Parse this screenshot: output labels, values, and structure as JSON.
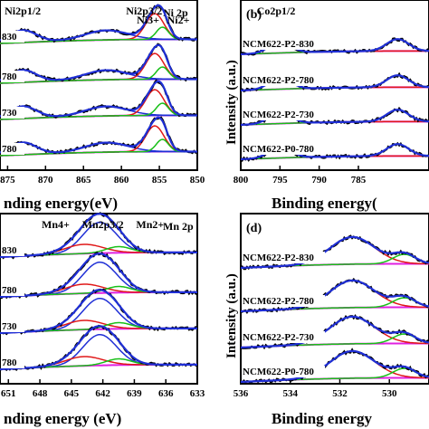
{
  "colors": {
    "raw": "#000000",
    "fit": "#1f2fd6",
    "background": "#e020e0",
    "peak_red": "#e01818",
    "peak_green": "#18c018"
  },
  "chart_data": [
    {
      "panel": "a",
      "type": "line",
      "element_label": "Ni 2p",
      "xlabel": "nding energy(eV)",
      "xlim": [
        876,
        850
      ],
      "x_ticks": [
        875,
        870,
        865,
        860,
        855,
        850
      ],
      "annotations": [
        {
          "text": "Ni2p1/2",
          "x": 873
        },
        {
          "text": "Ni2p3/2",
          "x": 857
        },
        {
          "text": "Ni3+",
          "x": 856.5,
          "color": "peak_red"
        },
        {
          "text": "Ni2+",
          "x": 852.5,
          "color": "peak_green"
        }
      ],
      "series_labels": [
        "830",
        "780",
        "730",
        "780"
      ],
      "peaks": [
        {
          "center": 873,
          "sigma": 1.8,
          "amp": 0.45
        },
        {
          "center": 862,
          "sigma": 2.8,
          "amp": 0.35
        },
        {
          "center": 855.6,
          "sigma": 1.2,
          "amp": 0.95
        },
        {
          "center": 854.6,
          "sigma": 0.8,
          "amp": 0.45
        }
      ]
    },
    {
      "panel": "b",
      "type": "line",
      "letter": "(b)",
      "xlabel": "Binding energy(",
      "ylabel": "Intensity (a.u.)",
      "xlim": [
        800,
        776
      ],
      "x_ticks": [
        800,
        795,
        790,
        785
      ],
      "annotations": [
        {
          "text": "Co2p1/2",
          "x": 795.5
        }
      ],
      "series_labels": [
        "NCM622-P2-830",
        "NCM622-P2-780",
        "NCM622-P2-730",
        "NCM622-P0-780"
      ],
      "peaks": [
        {
          "center": 795,
          "sigma": 1.4,
          "amp": 0.5
        },
        {
          "center": 780,
          "sigma": 1.4,
          "amp": 0.55
        }
      ]
    },
    {
      "panel": "c",
      "type": "line",
      "element_label": "Mn 2p",
      "xlabel": "nding energy (eV)",
      "xlim": [
        651.8,
        633
      ],
      "x_ticks": [
        651,
        648,
        645,
        642,
        639,
        636,
        633
      ],
      "annotations": [
        {
          "text": "Mn4+",
          "x": 646.5
        },
        {
          "text": "Mn2p3/2",
          "x": 642
        },
        {
          "text": "Mn2+",
          "x": 637.5
        }
      ],
      "series_labels": [
        "830",
        "780",
        "730",
        "780"
      ],
      "peaks": [
        {
          "center": 642.3,
          "sigma": 1.6,
          "amp": 1.0
        },
        {
          "center": 643.8,
          "sigma": 1.8,
          "amp": 0.3
        },
        {
          "center": 640.5,
          "sigma": 1.2,
          "amp": 0.2
        }
      ]
    },
    {
      "panel": "d",
      "type": "line",
      "letter": "(d)",
      "xlabel": "Binding energy",
      "ylabel": "Intensity (a.u.)",
      "xlim": [
        536,
        528.4
      ],
      "x_ticks": [
        536,
        534,
        532,
        530
      ],
      "series_labels": [
        "NCM622-P2-830",
        "NCM622-P2-780",
        "NCM622-P2-730",
        "NCM622-P0-780"
      ],
      "peaks": [
        {
          "center": 531.5,
          "sigma": 0.9,
          "amp": 1.0
        },
        {
          "center": 529.4,
          "sigma": 0.45,
          "amp": 0.35
        }
      ]
    }
  ]
}
